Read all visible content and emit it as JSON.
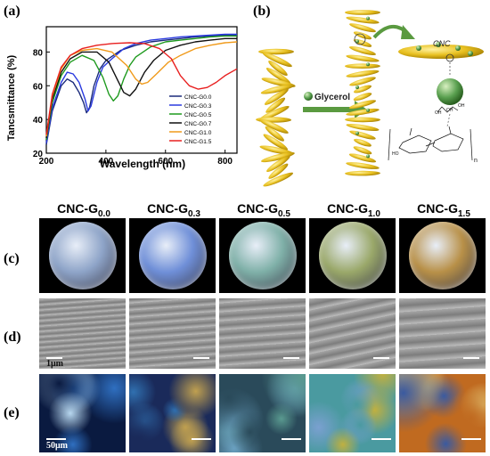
{
  "panels": {
    "a": "(a)",
    "b": "(b)",
    "c": "(c)",
    "d": "(d)",
    "e": "(e)"
  },
  "chart_data": {
    "type": "line",
    "xlabel": "Wavelength (nm)",
    "ylabel": "Tancsmittance (%)",
    "xlim": [
      200,
      840
    ],
    "ylim": [
      20,
      95
    ],
    "xticks": [
      "200",
      "400",
      "600",
      "800"
    ],
    "yticks": [
      "20",
      "40",
      "60",
      "80"
    ],
    "legend_position": "right",
    "series": [
      {
        "name": "CNC-G0.0",
        "color": "#1a2a7a",
        "x": [
          200,
          220,
          250,
          270,
          290,
          310,
          325,
          335,
          345,
          360,
          380,
          400,
          450,
          500,
          550,
          600,
          650,
          700,
          750,
          800,
          840
        ],
        "y": [
          25,
          45,
          60,
          64,
          62,
          56,
          50,
          44,
          47,
          60,
          70,
          75,
          81,
          84,
          86,
          87,
          88,
          89,
          89.5,
          90,
          90
        ]
      },
      {
        "name": "CNC-G0.3",
        "color": "#2a3adf",
        "x": [
          200,
          220,
          250,
          270,
          290,
          310,
          330,
          340,
          350,
          370,
          390,
          420,
          460,
          500,
          550,
          600,
          650,
          700,
          750,
          800,
          840
        ],
        "y": [
          26,
          47,
          62,
          68,
          67,
          62,
          52,
          45,
          48,
          62,
          71,
          76,
          82,
          85,
          87,
          88,
          89,
          89.5,
          90,
          90.5,
          90.5
        ]
      },
      {
        "name": "CNC-G0.5",
        "color": "#1e9a1e",
        "x": [
          200,
          220,
          250,
          280,
          320,
          360,
          390,
          410,
          425,
          440,
          460,
          480,
          500,
          550,
          600,
          650,
          700,
          750,
          800,
          840
        ],
        "y": [
          28,
          50,
          66,
          74,
          78,
          75,
          65,
          55,
          51,
          54,
          64,
          72,
          77,
          83,
          86,
          87,
          88,
          89,
          89.5,
          89.5
        ]
      },
      {
        "name": "CNC-G0.7",
        "color": "#111111",
        "x": [
          200,
          220,
          250,
          280,
          320,
          370,
          410,
          440,
          460,
          480,
          500,
          530,
          560,
          600,
          650,
          700,
          750,
          800,
          840
        ],
        "y": [
          29,
          52,
          68,
          76,
          80,
          80,
          74,
          63,
          56,
          54,
          58,
          68,
          75,
          81,
          84,
          86,
          87,
          88,
          88
        ]
      },
      {
        "name": "CNC-G1.0",
        "color": "#f09a1a",
        "x": [
          200,
          220,
          250,
          280,
          320,
          370,
          420,
          470,
          500,
          520,
          540,
          570,
          610,
          650,
          700,
          750,
          800,
          840
        ],
        "y": [
          30,
          54,
          70,
          78,
          81,
          82,
          80,
          72,
          64,
          61,
          62,
          67,
          74,
          78,
          82,
          84,
          85.5,
          86
        ]
      },
      {
        "name": "CNC-G1.5",
        "color": "#e82020",
        "x": [
          200,
          220,
          250,
          280,
          320,
          370,
          420,
          480,
          530,
          580,
          620,
          650,
          680,
          710,
          740,
          770,
          800,
          840
        ],
        "y": [
          31,
          55,
          71,
          78,
          82,
          84,
          85,
          85.5,
          85,
          82,
          76,
          66,
          60,
          58,
          59,
          62,
          66,
          70
        ]
      }
    ]
  },
  "schematic": {
    "glycerol_label": "Glycerol",
    "cnc_label": "CNC",
    "n_label": "n",
    "oh_labels": [
      "OH",
      "OH",
      "OH"
    ],
    "ho_label": "HO"
  },
  "columns": [
    {
      "base": "CNC-G",
      "sub": "0.0"
    },
    {
      "base": "CNC-G",
      "sub": "0.3"
    },
    {
      "base": "CNC-G",
      "sub": "0.5"
    },
    {
      "base": "CNC-G",
      "sub": "1.0"
    },
    {
      "base": "CNC-G",
      "sub": "1.5"
    }
  ],
  "scale_bars": {
    "sem": "1μm",
    "pom": "50μm"
  },
  "colors": {
    "photo_bg": "#000000",
    "disc_colors": [
      "#8ea4c8",
      "#6f8fd8",
      "#7fb0a8",
      "#9aa86a",
      "#b89048"
    ],
    "pom_colors": [
      [
        "#0a1a40",
        "#2f6fc0",
        "#b8d8f0"
      ],
      [
        "#1a2a5a",
        "#3070b0",
        "#c0a050"
      ],
      [
        "#2a4a5a",
        "#5a9a90",
        "#6aa0c0"
      ],
      [
        "#4a9aa0",
        "#c0b040",
        "#7aa0d0"
      ],
      [
        "#c06a20",
        "#3a5aa0",
        "#e0c070"
      ]
    ]
  }
}
